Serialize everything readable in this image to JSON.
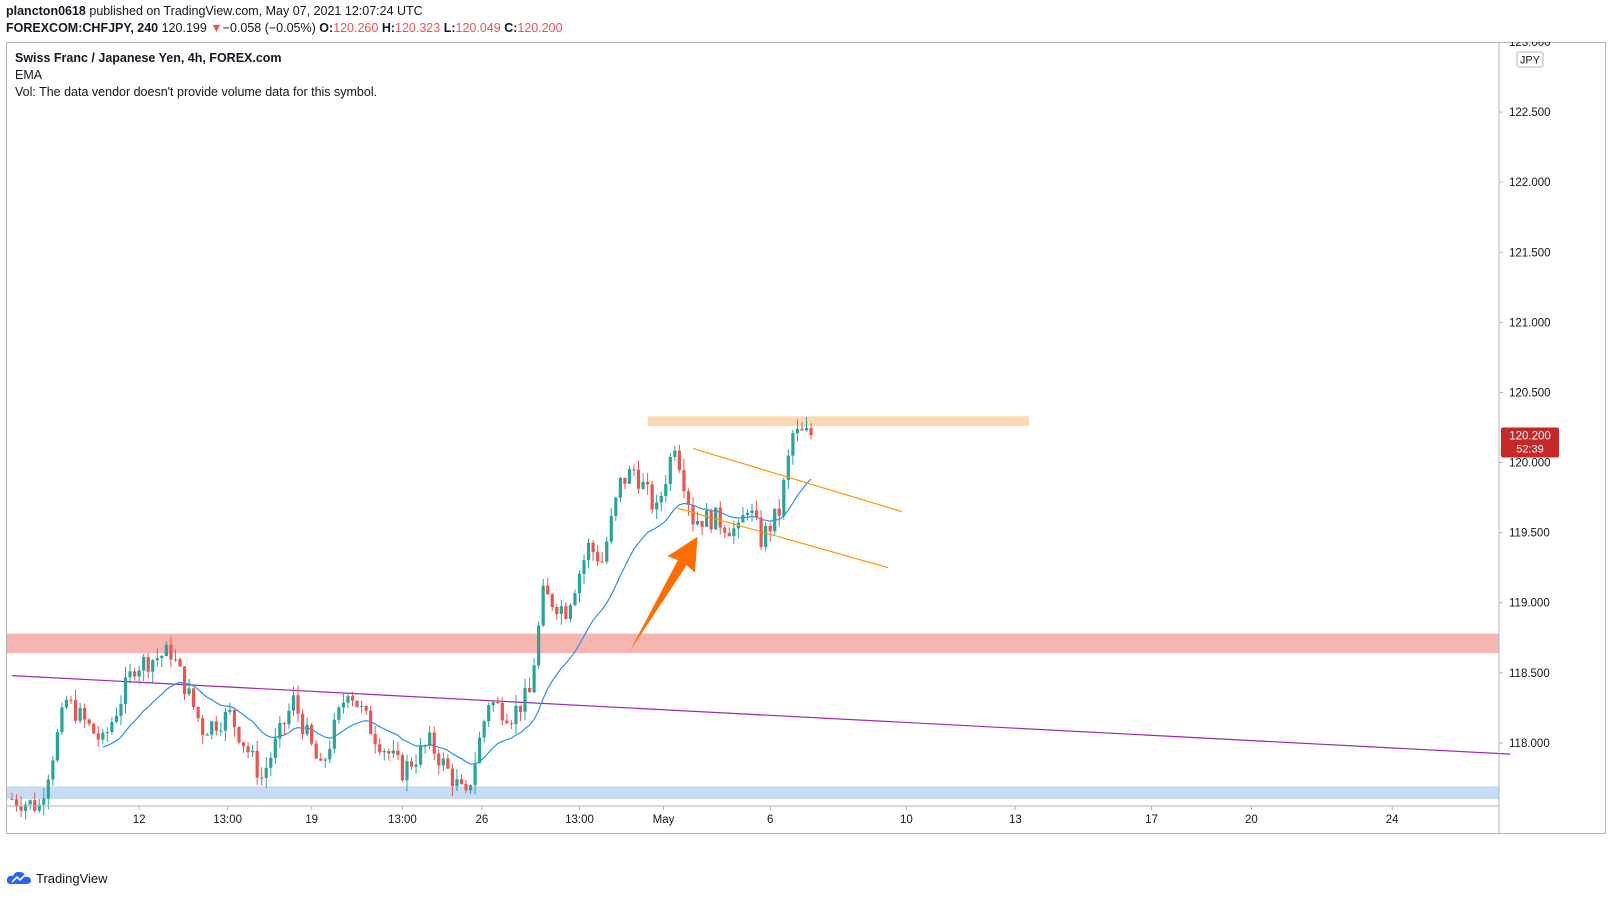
{
  "header": {
    "publisher": "plancton0618",
    "published_text": "published on TradingView.com, May 07, 2021 12:07:24 UTC",
    "symbol": "FOREXCOM:CHFJPY, 240",
    "last": "120.199",
    "change_arrow": "▼",
    "change": "−0.058 (−0.05%)",
    "o_label": "O:",
    "o_value": "120.260",
    "h_label": "H:",
    "h_value": "120.323",
    "l_label": "L:",
    "l_value": "120.049",
    "c_label": "C:",
    "c_value": "120.200"
  },
  "legend": {
    "title": "Swiss Franc / Japanese Yen, 4h, FOREX.com",
    "ema": "EMA",
    "volume": "Vol: The data vendor doesn't provide volume data for this symbol."
  },
  "price_tag": {
    "price": "120.200",
    "countdown": "52:39"
  },
  "currency": "JPY",
  "footer": {
    "brand": "TradingView"
  },
  "colors": {
    "up": "#26a69a",
    "down": "#ef5350",
    "ema": "#2196f3",
    "trendline": "#9c27b0",
    "channel": "#ff9800",
    "arrow": "#ff6d00",
    "resistance_zone": "#f7b5b2",
    "support_zone": "#c8dbf5",
    "top_zone": "#fbd9b3"
  },
  "chart_data": {
    "type": "candlestick",
    "title": "Swiss Franc / Japanese Yen, 4h, FOREX.com",
    "symbol": "CHFJPY",
    "timeframe": "240",
    "ylim": [
      117.55,
      123.0
    ],
    "y_ticks": [
      "123.000",
      "122.500",
      "122.000",
      "121.500",
      "121.000",
      "120.500",
      "120.000",
      "119.500",
      "119.000",
      "118.500",
      "118.000"
    ],
    "x_ticks": [
      "6",
      "12",
      "13:00",
      "19",
      "13:00",
      "26",
      "13:00",
      "May",
      "6",
      "10",
      "13",
      "17",
      "20",
      "24"
    ],
    "x_tick_index": [
      -4,
      28,
      47.5,
      66,
      86,
      103.5,
      125,
      143.5,
      167,
      197,
      221,
      251,
      273,
      304
    ],
    "waypoints": [
      [
        0,
        117.6
      ],
      [
        6,
        117.55
      ],
      [
        12,
        118.3
      ],
      [
        20,
        118.0
      ],
      [
        27,
        118.55
      ],
      [
        35,
        118.65
      ],
      [
        42,
        118.1
      ],
      [
        48,
        118.2
      ],
      [
        55,
        117.75
      ],
      [
        62,
        118.3
      ],
      [
        68,
        117.8
      ],
      [
        74,
        118.4
      ],
      [
        80,
        118.05
      ],
      [
        86,
        117.8
      ],
      [
        92,
        118.0
      ],
      [
        97,
        117.75
      ],
      [
        100,
        117.6
      ],
      [
        105,
        118.3
      ],
      [
        110,
        118.2
      ],
      [
        114,
        118.35
      ],
      [
        117,
        119.05
      ],
      [
        122,
        118.95
      ],
      [
        127,
        119.4
      ],
      [
        130,
        119.3
      ],
      [
        134,
        119.85
      ],
      [
        137,
        119.95
      ],
      [
        142,
        119.65
      ],
      [
        146,
        120.15
      ],
      [
        150,
        119.6
      ],
      [
        155,
        119.6
      ],
      [
        160,
        119.5
      ],
      [
        162,
        119.7
      ],
      [
        165,
        119.45
      ],
      [
        169,
        119.65
      ],
      [
        172,
        120.2
      ],
      [
        176,
        120.2
      ]
    ],
    "bars_count": 176,
    "ema_period": 20,
    "annotations": {
      "resistance_zone": [
        118.64,
        118.78
      ],
      "support_zone": [
        117.6,
        117.69
      ],
      "top_zone": [
        120.26,
        120.33
      ],
      "trendline": [
        [
          0,
          118.48
        ],
        [
          330,
          117.92
        ]
      ],
      "channel_upper": [
        [
          150,
          120.1
        ],
        [
          196,
          119.65
        ]
      ],
      "channel_lower": [
        [
          146,
          119.68
        ],
        [
          193,
          119.25
        ]
      ],
      "arrow": [
        [
          136,
          118.65
        ],
        [
          151,
          119.47
        ]
      ]
    }
  }
}
